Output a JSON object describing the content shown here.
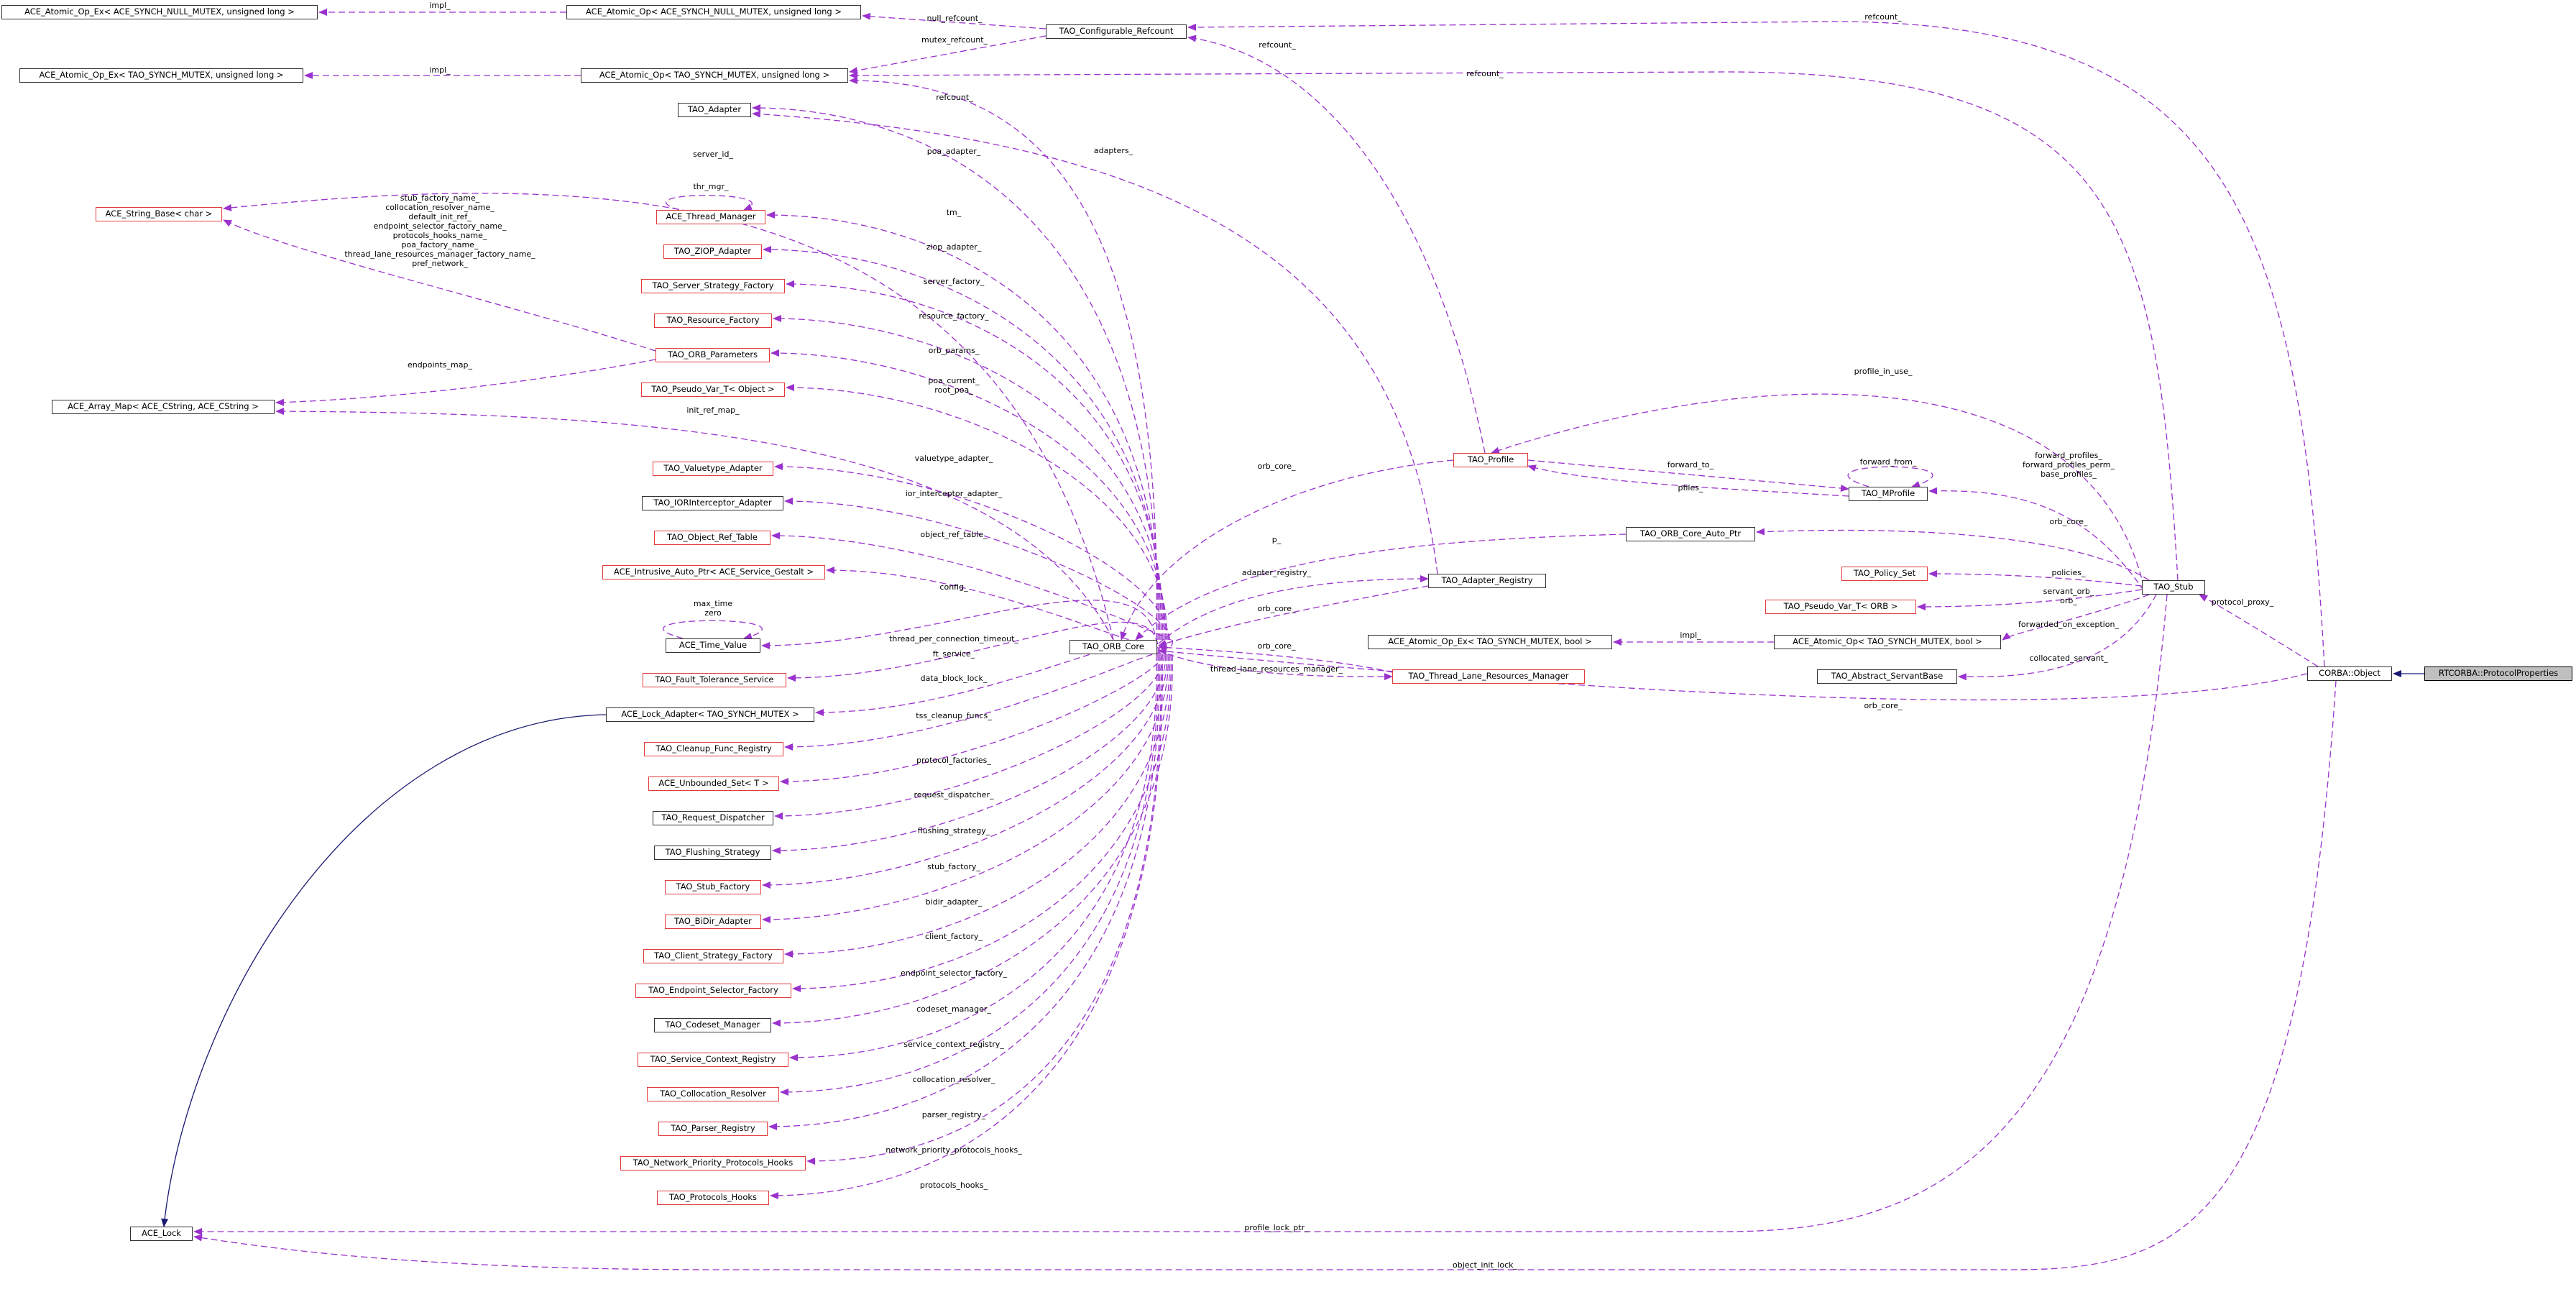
{
  "nodes": {
    "atomic_op_ex_null": "ACE_Atomic_Op_Ex< ACE_SYNCH_NULL_MUTEX, unsigned long >",
    "atomic_op_null": "ACE_Atomic_Op< ACE_SYNCH_NULL_MUTEX, unsigned long >",
    "configurable_refcount": "TAO_Configurable_Refcount",
    "atomic_op_ex_tao": "ACE_Atomic_Op_Ex< TAO_SYNCH_MUTEX, unsigned long >",
    "atomic_op_tao": "ACE_Atomic_Op< TAO_SYNCH_MUTEX, unsigned long >",
    "adapter": "TAO_Adapter",
    "string_base": "ACE_String_Base< char >",
    "thread_manager": "ACE_Thread_Manager",
    "ziop_adapter": "TAO_ZIOP_Adapter",
    "server_strategy_factory": "TAO_Server_Strategy_Factory",
    "resource_factory": "TAO_Resource_Factory",
    "orb_parameters": "TAO_ORB_Parameters",
    "pseudo_var_object": "TAO_Pseudo_Var_T< Object >",
    "array_map": "ACE_Array_Map< ACE_CString, ACE_CString >",
    "valuetype_adapter": "TAO_Valuetype_Adapter",
    "ior_interceptor_adapter": "TAO_IORInterceptor_Adapter",
    "object_ref_table": "TAO_Object_Ref_Table",
    "intrusive_auto_ptr": "ACE_Intrusive_Auto_Ptr< ACE_Service_Gestalt >",
    "time_value": "ACE_Time_Value",
    "fault_tolerance_service": "TAO_Fault_Tolerance_Service",
    "lock_adapter": "ACE_Lock_Adapter< TAO_SYNCH_MUTEX >",
    "cleanup_func_registry": "TAO_Cleanup_Func_Registry",
    "unbounded_set": "ACE_Unbounded_Set< T >",
    "request_dispatcher": "TAO_Request_Dispatcher",
    "flushing_strategy": "TAO_Flushing_Strategy",
    "stub_factory": "TAO_Stub_Factory",
    "bidir_adapter": "TAO_BiDir_Adapter",
    "client_strategy_factory": "TAO_Client_Strategy_Factory",
    "endpoint_selector_factory": "TAO_Endpoint_Selector_Factory",
    "codeset_manager": "TAO_Codeset_Manager",
    "service_context_registry": "TAO_Service_Context_Registry",
    "collocation_resolver": "TAO_Collocation_Resolver",
    "parser_registry": "TAO_Parser_Registry",
    "network_priority_protocols_hooks": "TAO_Network_Priority_Protocols_Hooks",
    "protocols_hooks": "TAO_Protocols_Hooks",
    "ace_lock": "ACE_Lock",
    "orb_core": "TAO_ORB_Core",
    "profile": "TAO_Profile",
    "mprofile": "TAO_MProfile",
    "orb_core_auto_ptr": "TAO_ORB_Core_Auto_Ptr",
    "adapter_registry": "TAO_Adapter_Registry",
    "atomic_op_ex_bool": "ACE_Atomic_Op_Ex< TAO_SYNCH_MUTEX, bool >",
    "thread_lane_resources_manager": "TAO_Thread_Lane_Resources_Manager",
    "policy_set": "TAO_Policy_Set",
    "pseudo_var_orb": "TAO_Pseudo_Var_T< ORB >",
    "atomic_op_bool": "ACE_Atomic_Op< TAO_SYNCH_MUTEX, bool >",
    "abstract_servant_base": "TAO_Abstract_ServantBase",
    "stub": "TAO_Stub",
    "corba_object": "CORBA::Object",
    "protocol_properties": "RTCORBA::ProtocolProperties"
  },
  "edge_labels": {
    "impl_null": "impl_",
    "null_refcount": "null_refcount_",
    "refcount_obj": "refcount_",
    "mutex_refcount": "mutex_refcount_",
    "refcount_profile": "refcount_",
    "impl_tao": "impl_",
    "refcount_stub": "refcount_",
    "refcount_orb": "refcount_",
    "poa_adapter": "poa_adapter_",
    "adapters": "adapters_",
    "server_id": "server_id_",
    "thr_mgr": "thr_mgr_",
    "tm": "tm_",
    "ziop_adapter": "ziop_adapter_",
    "param_names": [
      "stub_factory_name_",
      "collocation_resolver_name_",
      "default_init_ref_",
      "endpoint_selector_factory_name_",
      "protocols_hooks_name_",
      "poa_factory_name_",
      "thread_lane_resources_manager_factory_name_",
      "pref_network_"
    ],
    "server_factory": "server_factory_",
    "resource_factory": "resource_factory_",
    "orb_params": "orb_params_",
    "endpoints_map": "endpoints_map_",
    "poa_current": [
      "poa_current_",
      "root_poa_"
    ],
    "init_ref_map": "init_ref_map_",
    "valuetype_adapter": "valuetype_adapter_",
    "ior_interceptor_adapter": "ior_interceptor_adapter_",
    "object_ref_table": "object_ref_table_",
    "config": "config_",
    "max_time": [
      "max_time",
      "zero"
    ],
    "thread_per_connection_timeout": "thread_per_connection_timeout_",
    "ft_service": "ft_service_",
    "data_block_lock": "data_block_lock_",
    "tss_cleanup_funcs": "tss_cleanup_funcs_",
    "protocol_factories": "protocol_factories_",
    "request_dispatcher": "request_dispatcher_",
    "flushing_strategy": "flushing_strategy_",
    "stub_factory": "stub_factory_",
    "bidir_adapter": "bidir_adapter_",
    "client_factory": "client_factory_",
    "endpoint_selector_factory": "endpoint_selector_factory_",
    "codeset_manager": "codeset_manager_",
    "service_context_registry": "service_context_registry_",
    "collocation_resolver": "collocation_resolver_",
    "parser_registry": "parser_registry_",
    "network_priority_protocols_hooks": "network_priority_protocols_hooks_",
    "protocols_hooks": "protocols_hooks_",
    "profile_lock_ptr": "profile_lock_ptr_",
    "object_init_lock": "object_init_lock_",
    "profile_in_use": "profile_in_use_",
    "orb_core_profile": "orb_core_",
    "forward_to": "forward_to_",
    "forward_from": "forward_from_",
    "pfiles": "pfiles_",
    "forward_profiles": [
      "forward_profiles_",
      "forward_profiles_perm_",
      "base_profiles_"
    ],
    "p": "p_",
    "orb_core_stub": "orb_core_",
    "adapter_registry": "adapter_registry_",
    "orb_core_registry": "orb_core_",
    "orb_core_tlrm": "orb_core_",
    "thread_lane_resources_manager": "thread_lane_resources_manager_",
    "policies": "policies_",
    "servant_orb": [
      "servant_orb_",
      "orb_"
    ],
    "impl_bool": "impl_",
    "forwarded_on_exception": "forwarded_on_exception_",
    "collocated_servant": "collocated_servant_",
    "protocol_proxy": "protocol_proxy_",
    "orb_core_object": "orb_core_"
  },
  "colors": {
    "usage_edge": "#9a32cd",
    "inheritance_edge": "#191970",
    "red_border": "#e23b3b",
    "focus_fill": "#bfbfbf"
  }
}
